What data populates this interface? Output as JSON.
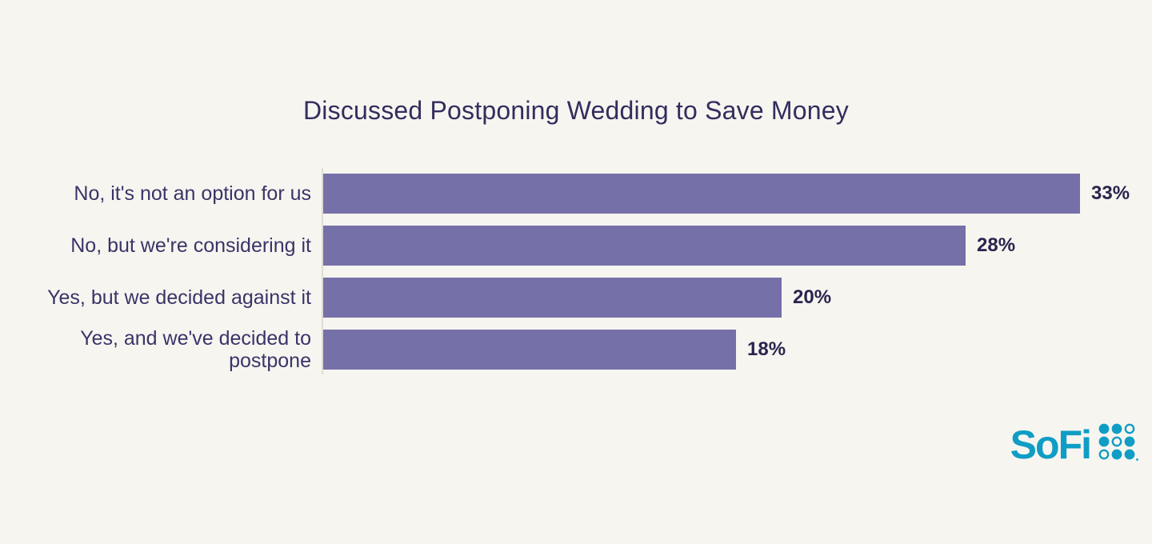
{
  "title": "Discussed Postponing Wedding to Save Money",
  "chart_data": {
    "type": "bar",
    "orientation": "horizontal",
    "title": "Discussed Postponing Wedding to Save Money",
    "categories": [
      "No, it's not an option for us",
      "No, but we're considering it",
      "Yes, but we decided against it",
      "Yes, and we've decided to postpone"
    ],
    "values": [
      33,
      28,
      20,
      18
    ],
    "value_labels": [
      "33%",
      "28%",
      "20%",
      "18%"
    ],
    "xlabel": "",
    "ylabel": "",
    "xlim": [
      0,
      33
    ],
    "grid": false,
    "legend": false,
    "bar_color": "#7570A8",
    "label_color": "#3A3468",
    "value_color": "#2A244E",
    "axis_line_color": "#DEDCD4",
    "background_color": "#F7F5F0",
    "title_color": "#332D5E"
  },
  "branding": {
    "logo_text": "SoFi",
    "logo_color": "#0F9DC5",
    "logo_mark": "sofi-dots-grid"
  }
}
